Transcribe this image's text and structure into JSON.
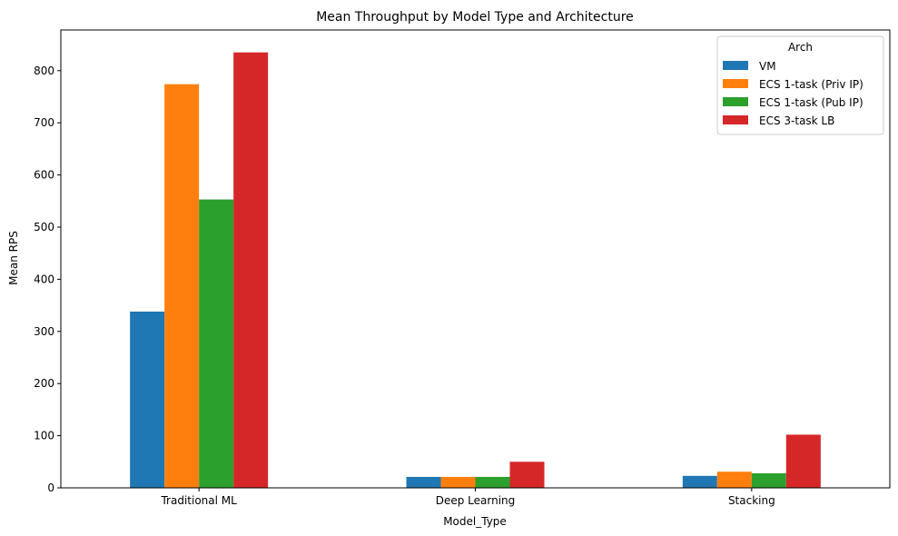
{
  "chart_data": {
    "type": "bar",
    "title": "Mean Throughput by Model Type and Architecture",
    "xlabel": "Model_Type",
    "ylabel": "Mean RPS",
    "categories": [
      "Traditional ML",
      "Deep Learning",
      "Stacking"
    ],
    "series": [
      {
        "name": "VM",
        "color": "#1f77b4",
        "values": [
          338,
          21,
          23
        ]
      },
      {
        "name": "ECS 1-task (Priv IP)",
        "color": "#ff7f0e",
        "values": [
          774,
          21,
          31
        ]
      },
      {
        "name": "ECS 1-task (Pub IP)",
        "color": "#2ca02c",
        "values": [
          553,
          21,
          28
        ]
      },
      {
        "name": "ECS 3-task LB",
        "color": "#d62728",
        "values": [
          835,
          50,
          102
        ]
      }
    ],
    "ylim": [
      0,
      878
    ],
    "yticks": [
      0,
      100,
      200,
      300,
      400,
      500,
      600,
      700,
      800
    ],
    "grid": false,
    "legend": {
      "title": "Arch",
      "position": "top-right"
    }
  }
}
